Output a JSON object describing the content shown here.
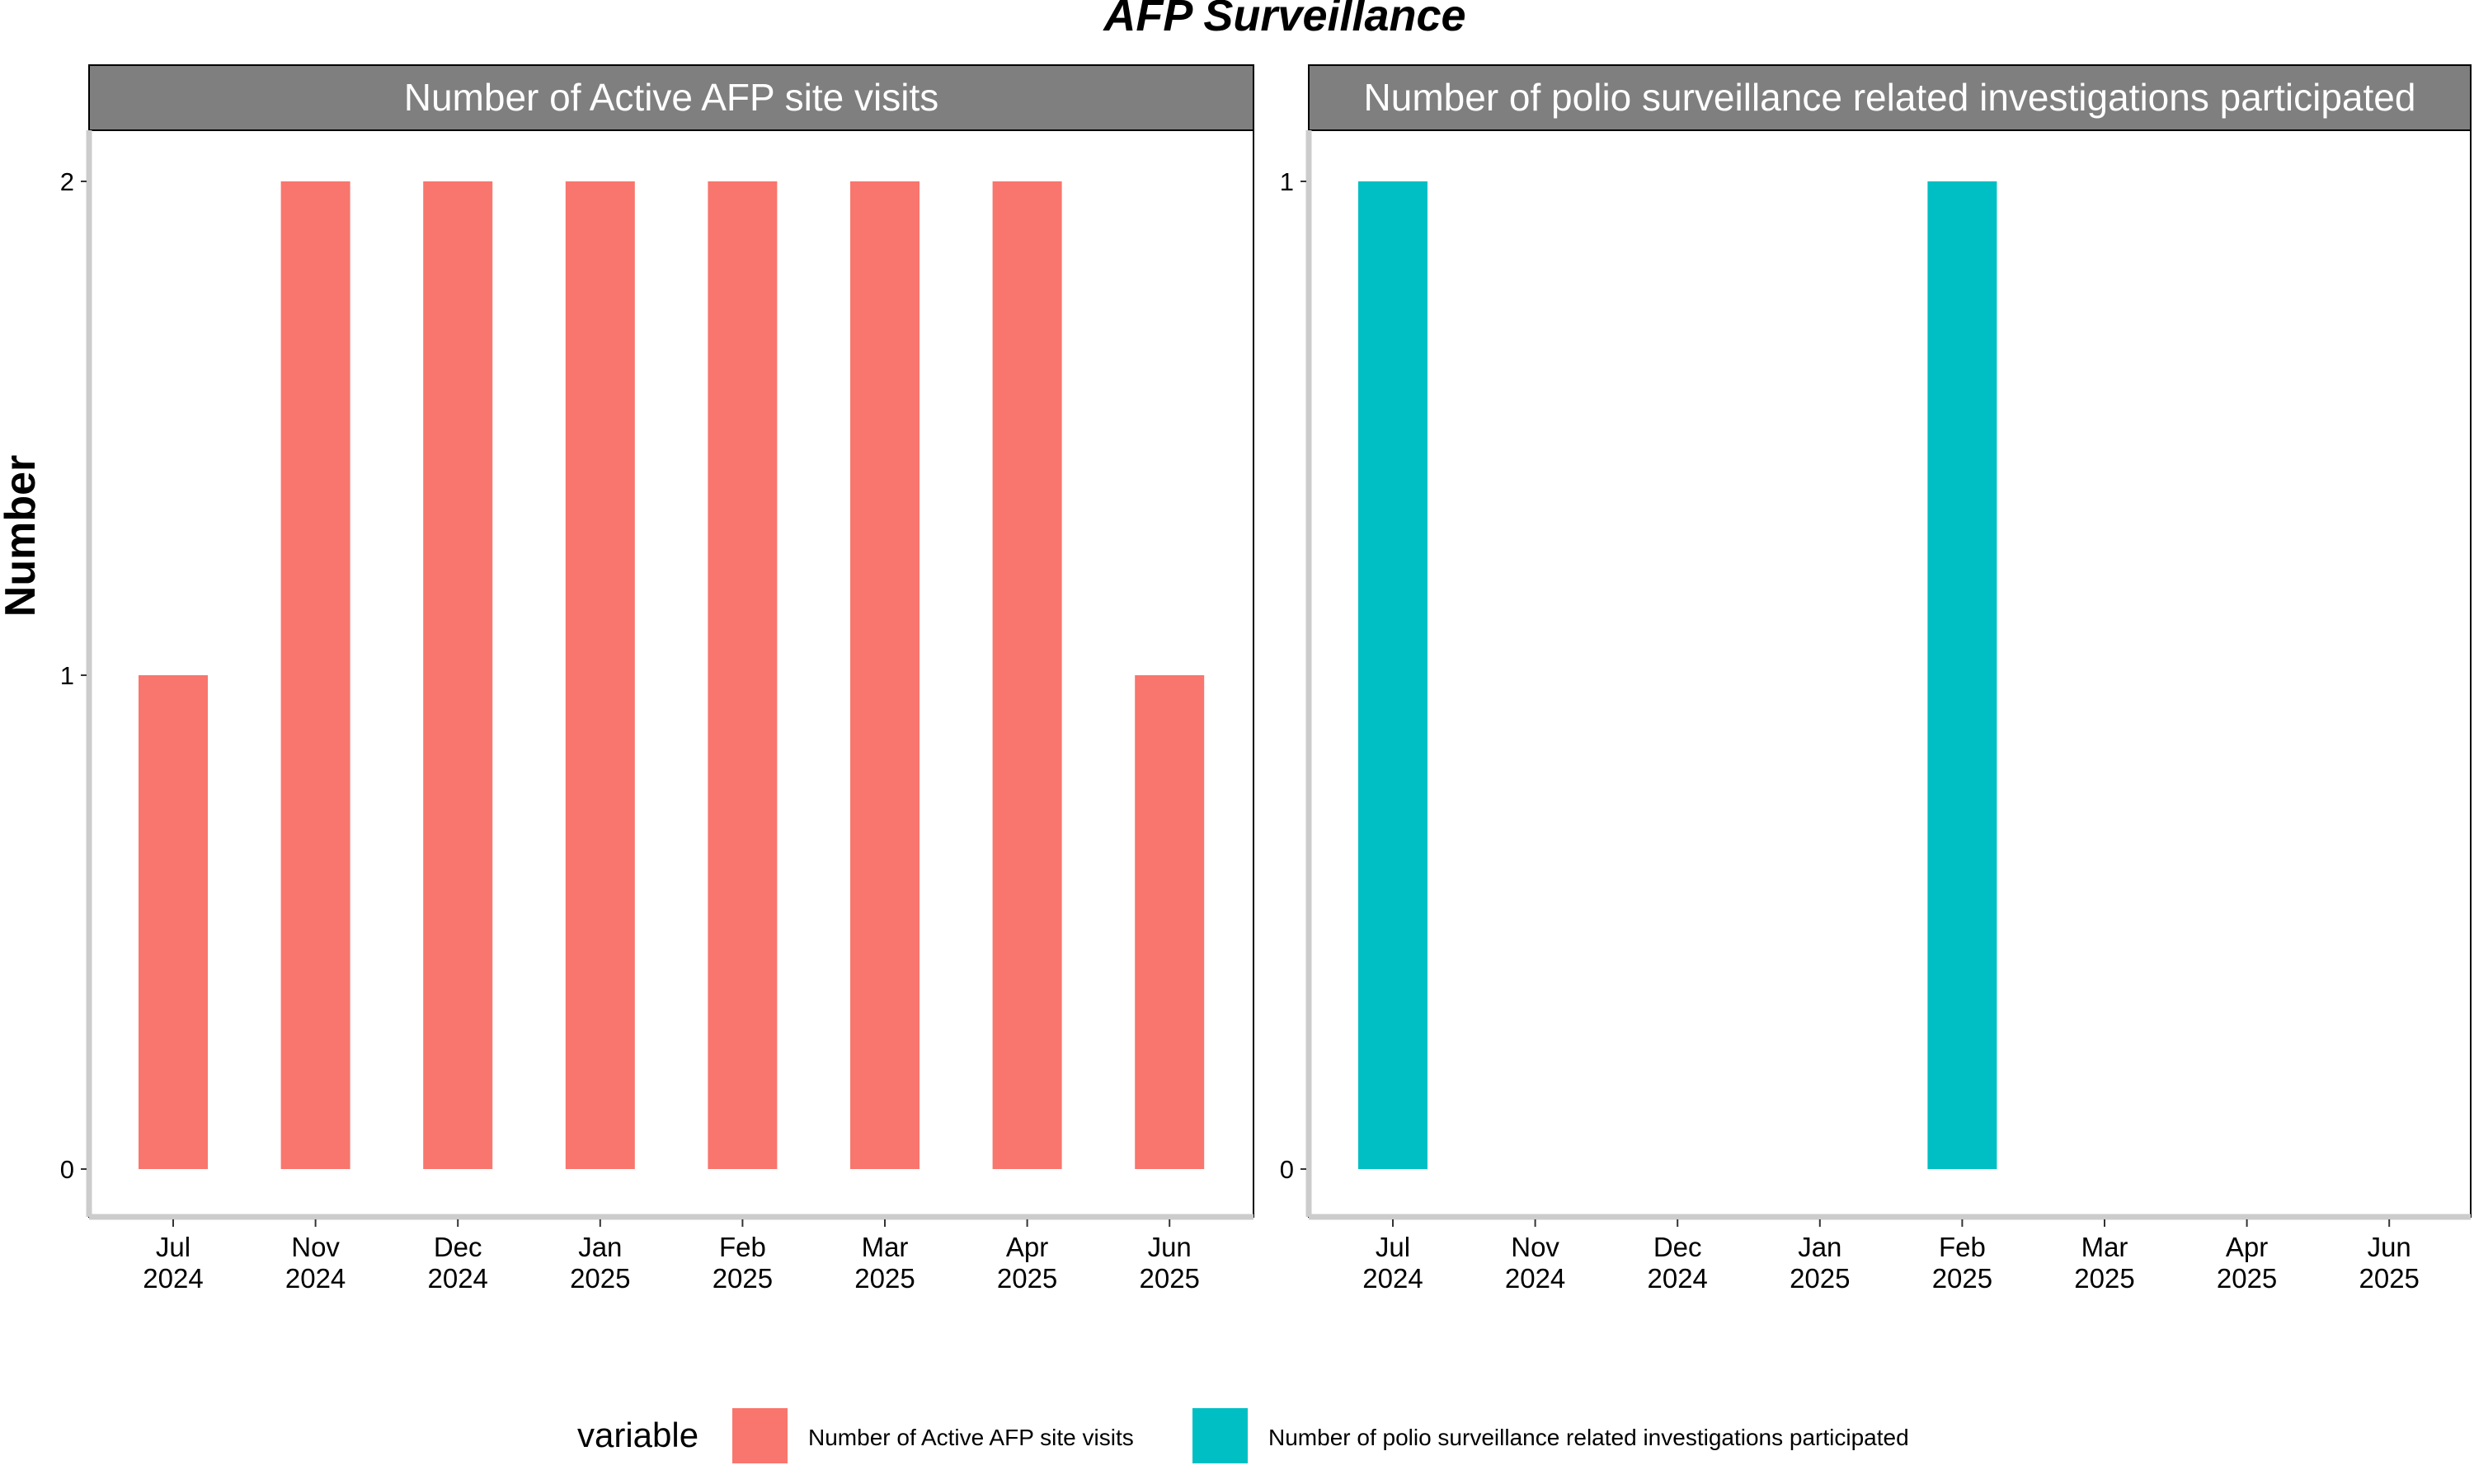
{
  "chart_data": {
    "type": "bar",
    "title": "AFP Surveillance",
    "ylabel": "Number",
    "xlabel": "",
    "categories": [
      "Jul\n2024",
      "Nov\n2024",
      "Dec\n2024",
      "Jan\n2025",
      "Feb\n2025",
      "Mar\n2025",
      "Apr\n2025",
      "Jun\n2025"
    ],
    "grid": false,
    "legend_position": "bottom",
    "legend_title": "variable",
    "panels": [
      {
        "strip_label": "Number of Active AFP site visits",
        "ylim": [
          0,
          2
        ],
        "yticks": [
          0,
          1,
          2
        ],
        "series": [
          {
            "name": "Number of Active AFP site visits",
            "color": "#F8766D",
            "values": [
              1,
              2,
              2,
              2,
              2,
              2,
              2,
              1
            ]
          }
        ]
      },
      {
        "strip_label": "Number of polio surveillance related investigations participated",
        "ylim": [
          0,
          1
        ],
        "yticks": [
          0,
          1
        ],
        "series": [
          {
            "name": "Number of polio surveillance related investigations participated",
            "color": "#00BFC4",
            "values": [
              1,
              null,
              null,
              null,
              1,
              null,
              null,
              null
            ]
          }
        ]
      }
    ],
    "legend": [
      {
        "name": "Number of Active AFP site visits",
        "color": "#F8766D"
      },
      {
        "name": "Number of polio surveillance related investigations participated",
        "color": "#00BFC4"
      }
    ]
  },
  "style": {
    "strip_background": "#7F7F7F",
    "axis_line_color": "#CCCCCC",
    "panel_border_color": "#000000"
  }
}
